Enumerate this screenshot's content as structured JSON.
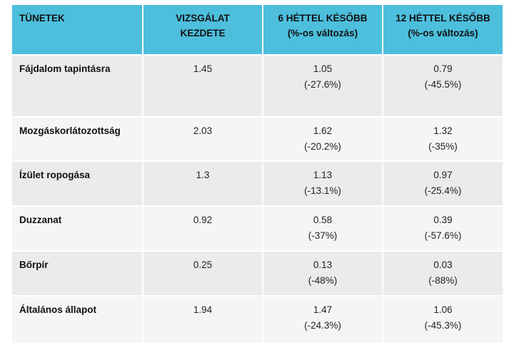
{
  "table": {
    "headers": [
      {
        "line1": "TÜNETEK",
        "line2": ""
      },
      {
        "line1": "VIZSGÁLAT",
        "line2": "KEZDETE"
      },
      {
        "line1": "6 HÉTTEL KÉSŐBB",
        "line2": "(%-os változás)"
      },
      {
        "line1": "12 HÉTTEL KÉSŐBB",
        "line2": "(%-os változás)"
      }
    ],
    "rows": [
      {
        "symptom": "Fájdalom tapintásra",
        "baseline": "1.45",
        "w6": "1.05",
        "w6_change": "(-27.6%)",
        "w12": "0.79",
        "w12_change": "(-45.5%)"
      },
      {
        "symptom": "Mozgáskorlátozottság",
        "baseline": "2.03",
        "w6": "1.62",
        "w6_change": "(-20.2%)",
        "w12": "1.32",
        "w12_change": "(-35%)"
      },
      {
        "symptom": "Ízület ropogása",
        "baseline": "1.3",
        "w6": "1.13",
        "w6_change": "(-13.1%)",
        "w12": "0.97",
        "w12_change": "(-25.4%)"
      },
      {
        "symptom": "Duzzanat",
        "baseline": "0.92",
        "w6": "0.58",
        "w6_change": "(-37%)",
        "w12": "0.39",
        "w12_change": "(-57.6%)"
      },
      {
        "symptom": "Bőrpír",
        "baseline": "0.25",
        "w6": "0.13",
        "w6_change": "(-48%)",
        "w12": "0.03",
        "w12_change": "(-88%)"
      },
      {
        "symptom": "Általános állapot",
        "baseline": "1.94",
        "w6": "1.47",
        "w6_change": "(-24.3%)",
        "w12": "1.06",
        "w12_change": "(-45.3%)"
      }
    ]
  }
}
